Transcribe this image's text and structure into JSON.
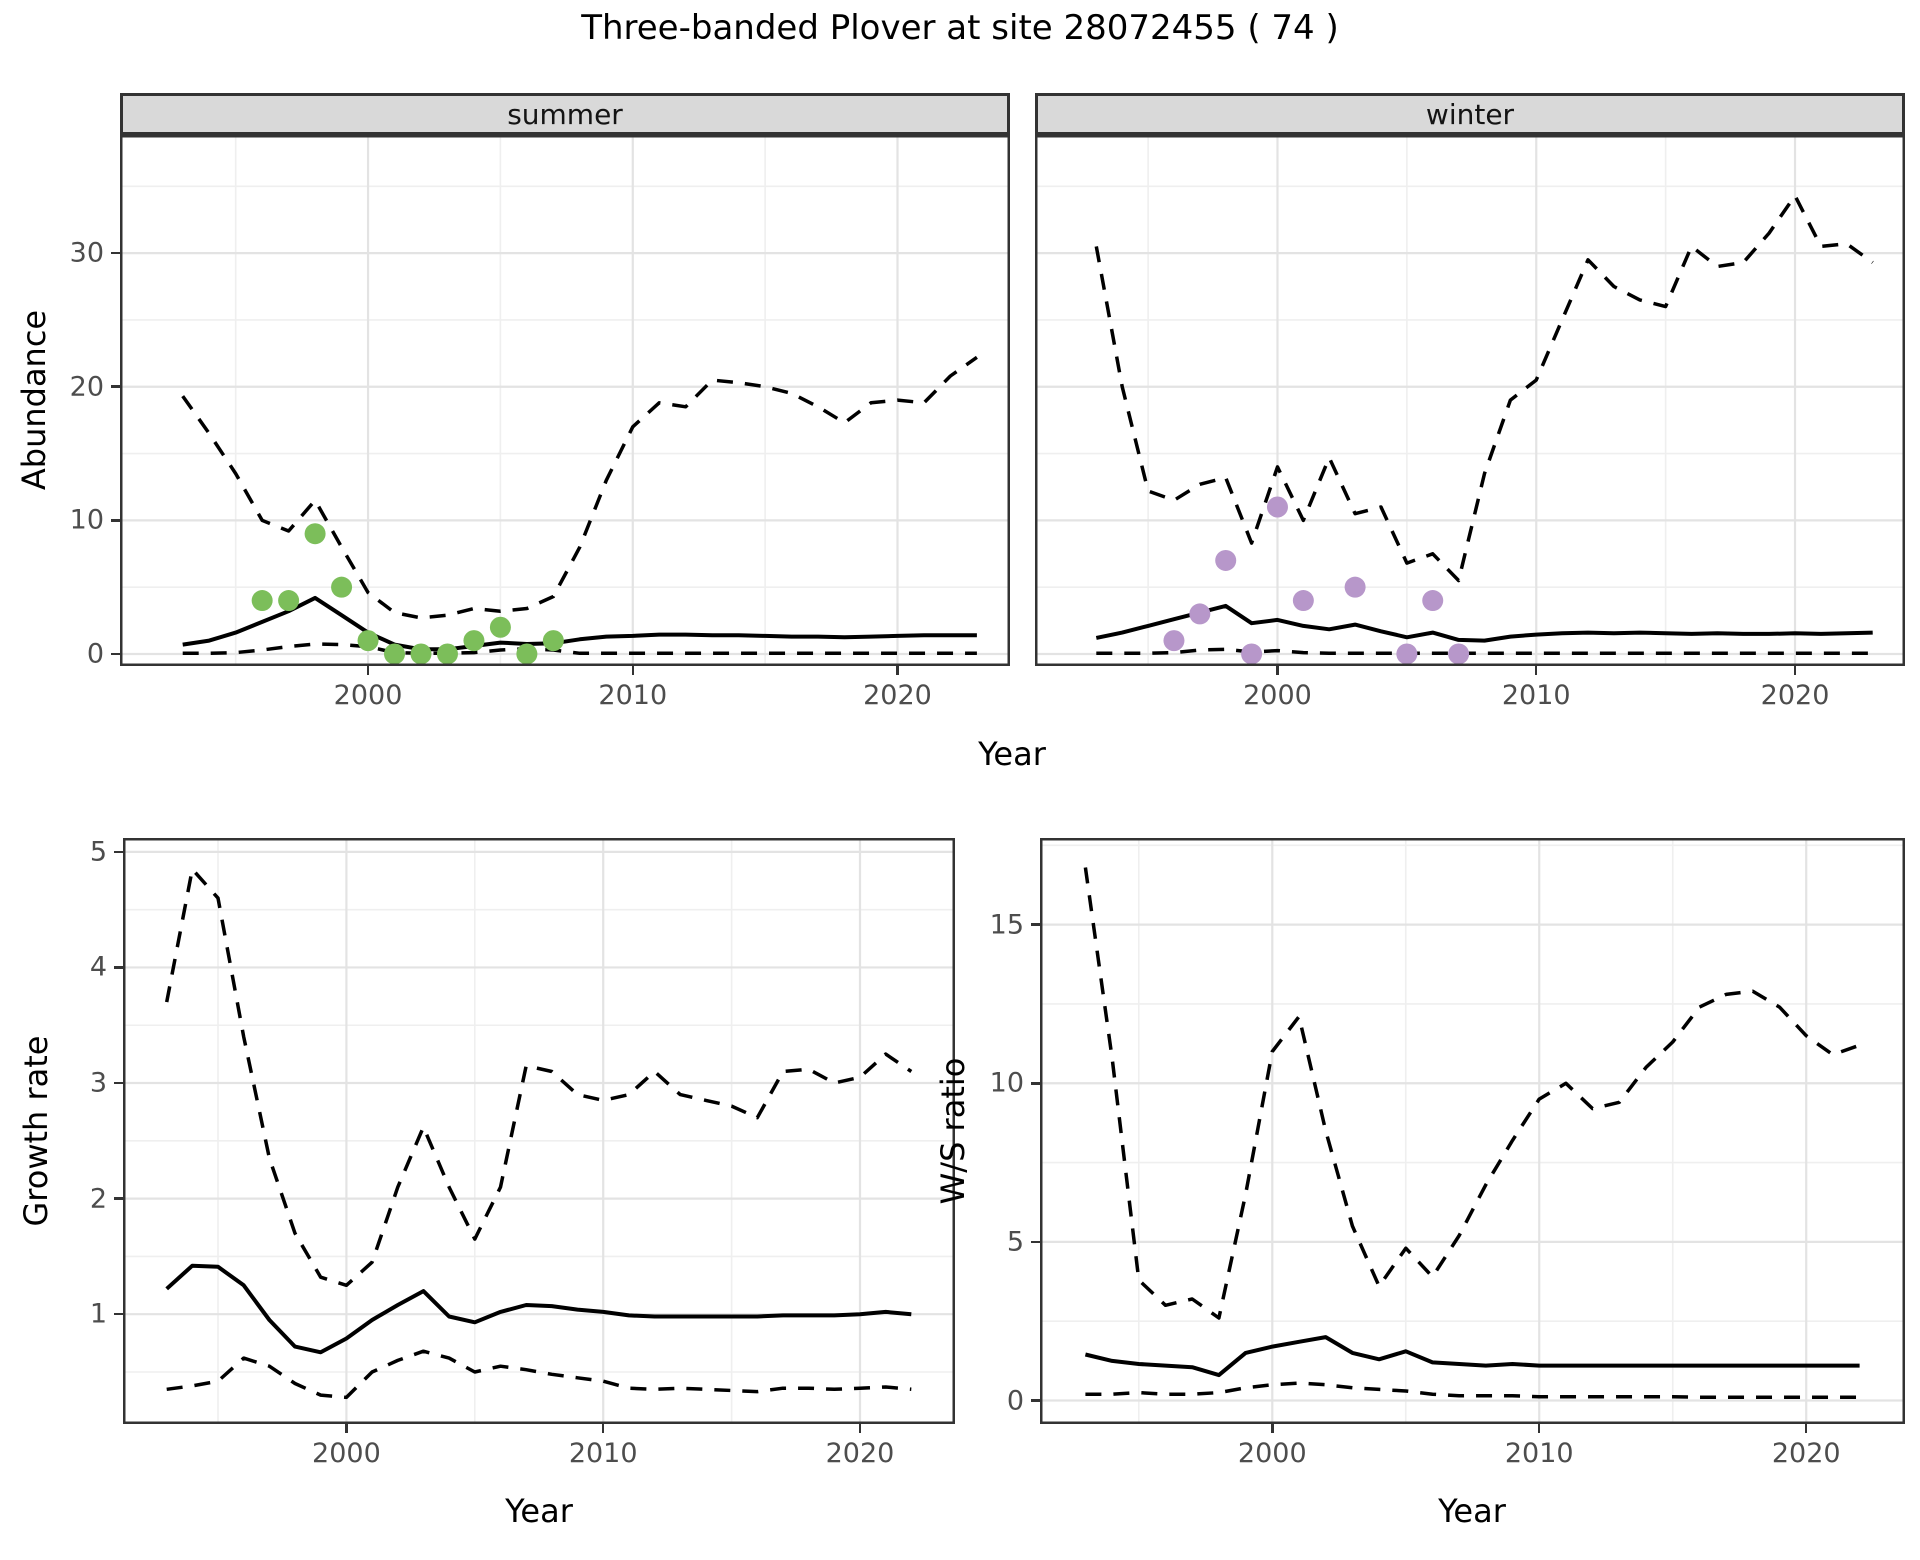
{
  "title": "Three-banded Plover at site 28072455 ( 74 )",
  "colors": {
    "summer_points": "#7cbe5a",
    "winter_points": "#b797ca",
    "line": "#000000",
    "grid_major": "#e3e3e3",
    "grid_minor": "#efefef",
    "panel_border": "#333333",
    "strip_bg": "#d9d9d9",
    "tick_text": "#4d4d4d"
  },
  "chart_data": [
    {
      "id": "abundance",
      "type": "line",
      "ylabel": "Abundance",
      "xlabel": "Year",
      "xlim": [
        1990.63,
        2024.25
      ],
      "ylim": [
        -0.9,
        38.84
      ],
      "xticks": {
        "values": [
          2000,
          2010,
          2020
        ],
        "labels": [
          "2000",
          "2010",
          "2020"
        ]
      },
      "yticks": {
        "values": [
          0,
          10,
          20,
          30
        ],
        "labels": [
          "0",
          "10",
          "20",
          "30"
        ]
      },
      "xminor": [
        1995,
        2005,
        2015
      ],
      "yminor": [
        5,
        15,
        25,
        35
      ],
      "years": [
        1993,
        1994,
        1995,
        1996,
        1997,
        1998,
        1999,
        2000,
        2001,
        2002,
        2003,
        2004,
        2005,
        2006,
        2007,
        2008,
        2009,
        2010,
        2011,
        2012,
        2013,
        2014,
        2015,
        2016,
        2017,
        2018,
        2019,
        2020,
        2021,
        2022,
        2023
      ],
      "facets": [
        {
          "label": "summer",
          "series": [
            {
              "name": "median_fit",
              "style": "solid",
              "values": [
                0.7,
                1.0,
                1.6,
                2.4,
                3.2,
                4.2,
                2.9,
                1.6,
                0.7,
                0.35,
                0.35,
                0.6,
                0.85,
                0.75,
                0.8,
                1.1,
                1.3,
                1.35,
                1.45,
                1.45,
                1.4,
                1.4,
                1.35,
                1.3,
                1.3,
                1.25,
                1.3,
                1.35,
                1.4,
                1.4,
                1.4
              ]
            },
            {
              "name": "upper_CI",
              "style": "dashed",
              "values": [
                19.3,
                16.5,
                13.5,
                10.0,
                9.2,
                11.5,
                8.0,
                4.6,
                3.1,
                2.7,
                2.9,
                3.4,
                3.2,
                3.4,
                4.3,
                8.0,
                13.0,
                17.0,
                18.8,
                18.5,
                20.5,
                20.3,
                20.0,
                19.5,
                18.5,
                17.3,
                18.8,
                19.0,
                18.8,
                20.8,
                22.2
              ]
            },
            {
              "name": "lower_CI",
              "style": "dashed",
              "values": [
                0.05,
                0.05,
                0.1,
                0.3,
                0.55,
                0.75,
                0.7,
                0.55,
                0.1,
                0.05,
                0.05,
                0.1,
                0.3,
                0.4,
                0.3,
                0.05,
                0.05,
                0.05,
                0.05,
                0.05,
                0.05,
                0.05,
                0.05,
                0.05,
                0.05,
                0.05,
                0.05,
                0.05,
                0.05,
                0.05,
                0.05
              ]
            }
          ],
          "points": {
            "name": "observed_counts",
            "color_key": "summer_points",
            "x": [
              1996,
              1997,
              1998,
              1999,
              2000,
              2001,
              2002,
              2003,
              2004,
              2005,
              2006,
              2007
            ],
            "y": [
              4,
              4,
              9,
              5,
              1,
              0,
              0,
              0,
              1,
              2,
              0,
              1
            ]
          }
        },
        {
          "label": "winter",
          "series": [
            {
              "name": "median_fit",
              "style": "solid",
              "values": [
                1.2,
                1.6,
                2.1,
                2.6,
                3.1,
                3.6,
                2.3,
                2.55,
                2.1,
                1.85,
                2.2,
                1.7,
                1.25,
                1.6,
                1.05,
                1.0,
                1.3,
                1.45,
                1.55,
                1.6,
                1.55,
                1.6,
                1.55,
                1.5,
                1.55,
                1.5,
                1.5,
                1.55,
                1.5,
                1.55,
                1.6
              ]
            },
            {
              "name": "upper_CI",
              "style": "dashed",
              "values": [
                30.5,
                20.0,
                12.2,
                11.5,
                12.7,
                13.2,
                8.3,
                14.0,
                10.0,
                14.7,
                10.5,
                11.0,
                6.8,
                7.5,
                5.5,
                13.5,
                19.0,
                20.5,
                25.0,
                29.5,
                27.5,
                26.5,
                26.0,
                30.5,
                29.0,
                29.3,
                31.5,
                34.3,
                30.5,
                30.7,
                29.3
              ]
            },
            {
              "name": "lower_CI",
              "style": "dashed",
              "values": [
                0.05,
                0.05,
                0.05,
                0.1,
                0.3,
                0.35,
                0.15,
                0.25,
                0.1,
                0.05,
                0.05,
                0.05,
                0.05,
                0.05,
                0.05,
                0.05,
                0.05,
                0.05,
                0.05,
                0.05,
                0.05,
                0.05,
                0.05,
                0.05,
                0.05,
                0.05,
                0.05,
                0.05,
                0.05,
                0.05,
                0.05
              ]
            }
          ],
          "points": {
            "name": "observed_counts",
            "color_key": "winter_points",
            "x": [
              1996,
              1997,
              1998,
              1999,
              2000,
              2001,
              2003,
              2005,
              2006,
              2007
            ],
            "y": [
              1,
              3,
              7,
              0,
              11,
              4,
              5,
              0,
              4,
              0
            ]
          }
        }
      ]
    },
    {
      "id": "growth_rate",
      "type": "line",
      "ylabel": "Growth rate",
      "xlabel": "Year",
      "xlim": [
        1991.3,
        2023.7
      ],
      "ylim": [
        0.05,
        5.12
      ],
      "xticks": {
        "values": [
          2000,
          2010,
          2020
        ],
        "labels": [
          "2000",
          "2010",
          "2020"
        ]
      },
      "yticks": {
        "values": [
          1,
          2,
          3,
          4,
          5
        ],
        "labels": [
          "1",
          "2",
          "3",
          "4",
          "5"
        ]
      },
      "xminor": [
        1995,
        2005,
        2015
      ],
      "yminor": [
        0.5,
        1.5,
        2.5,
        3.5,
        4.5
      ],
      "years": [
        1993,
        1994,
        1995,
        1996,
        1997,
        1998,
        1999,
        2000,
        2001,
        2002,
        2003,
        2004,
        2005,
        2006,
        2007,
        2008,
        2009,
        2010,
        2011,
        2012,
        2013,
        2014,
        2015,
        2016,
        2017,
        2018,
        2019,
        2020,
        2021,
        2022
      ],
      "facets": [
        {
          "label": "",
          "series": [
            {
              "name": "median_fit",
              "style": "solid",
              "values": [
                1.22,
                1.42,
                1.41,
                1.25,
                0.95,
                0.72,
                0.67,
                0.79,
                0.95,
                1.08,
                1.2,
                0.98,
                0.93,
                1.02,
                1.08,
                1.07,
                1.04,
                1.02,
                0.99,
                0.98,
                0.98,
                0.98,
                0.98,
                0.98,
                0.99,
                0.99,
                0.99,
                1.0,
                1.02,
                1.0
              ]
            },
            {
              "name": "upper_CI",
              "style": "dashed",
              "values": [
                3.7,
                4.85,
                4.6,
                3.4,
                2.35,
                1.7,
                1.32,
                1.25,
                1.45,
                2.1,
                2.62,
                2.1,
                1.65,
                2.1,
                3.15,
                3.1,
                2.9,
                2.85,
                2.9,
                3.1,
                2.9,
                2.85,
                2.8,
                2.7,
                3.1,
                3.12,
                3.0,
                3.05,
                3.25,
                3.1
              ]
            },
            {
              "name": "lower_CI",
              "style": "dashed",
              "values": [
                0.35,
                0.38,
                0.42,
                0.62,
                0.55,
                0.4,
                0.3,
                0.28,
                0.5,
                0.6,
                0.68,
                0.62,
                0.5,
                0.55,
                0.52,
                0.48,
                0.45,
                0.42,
                0.36,
                0.35,
                0.36,
                0.35,
                0.34,
                0.33,
                0.36,
                0.36,
                0.35,
                0.36,
                0.37,
                0.35
              ]
            }
          ],
          "points": null
        }
      ]
    },
    {
      "id": "ws_ratio",
      "type": "line",
      "ylabel": "W/S ratio",
      "xlabel": "Year",
      "xlim": [
        1991.3,
        2023.7
      ],
      "ylim": [
        -0.74,
        17.73
      ],
      "xticks": {
        "values": [
          2000,
          2010,
          2020
        ],
        "labels": [
          "2000",
          "2010",
          "2020"
        ]
      },
      "yticks": {
        "values": [
          0,
          5,
          10,
          15
        ],
        "labels": [
          "0",
          "5",
          "10",
          "15"
        ]
      },
      "xminor": [
        1995,
        2005,
        2015
      ],
      "yminor": [
        2.5,
        7.5,
        12.5,
        17.5
      ],
      "years": [
        1993,
        1994,
        1995,
        1996,
        1997,
        1998,
        1999,
        2000,
        2001,
        2002,
        2003,
        2004,
        2005,
        2006,
        2007,
        2008,
        2009,
        2010,
        2011,
        2012,
        2013,
        2014,
        2015,
        2016,
        2017,
        2018,
        2019,
        2020,
        2021,
        2022
      ],
      "facets": [
        {
          "label": "",
          "series": [
            {
              "name": "median_fit",
              "style": "solid",
              "values": [
                1.45,
                1.25,
                1.15,
                1.1,
                1.05,
                0.8,
                1.5,
                1.7,
                1.85,
                2.0,
                1.5,
                1.3,
                1.55,
                1.2,
                1.15,
                1.1,
                1.15,
                1.1,
                1.1,
                1.1,
                1.1,
                1.1,
                1.1,
                1.1,
                1.1,
                1.1,
                1.1,
                1.1,
                1.1,
                1.1
              ]
            },
            {
              "name": "upper_CI",
              "style": "dashed",
              "values": [
                16.8,
                10.8,
                3.8,
                3.0,
                3.2,
                2.6,
                6.5,
                11.0,
                12.1,
                8.5,
                5.5,
                3.6,
                4.8,
                3.9,
                5.2,
                6.8,
                8.2,
                9.5,
                10.0,
                9.2,
                9.4,
                10.5,
                11.3,
                12.4,
                12.8,
                12.9,
                12.4,
                11.5,
                10.9,
                11.2
              ]
            },
            {
              "name": "lower_CI",
              "style": "dashed",
              "values": [
                0.2,
                0.2,
                0.25,
                0.2,
                0.2,
                0.25,
                0.4,
                0.5,
                0.55,
                0.5,
                0.4,
                0.35,
                0.3,
                0.2,
                0.15,
                0.15,
                0.15,
                0.12,
                0.12,
                0.12,
                0.12,
                0.12,
                0.12,
                0.1,
                0.1,
                0.1,
                0.1,
                0.1,
                0.1,
                0.1
              ]
            }
          ],
          "points": null
        }
      ]
    }
  ]
}
